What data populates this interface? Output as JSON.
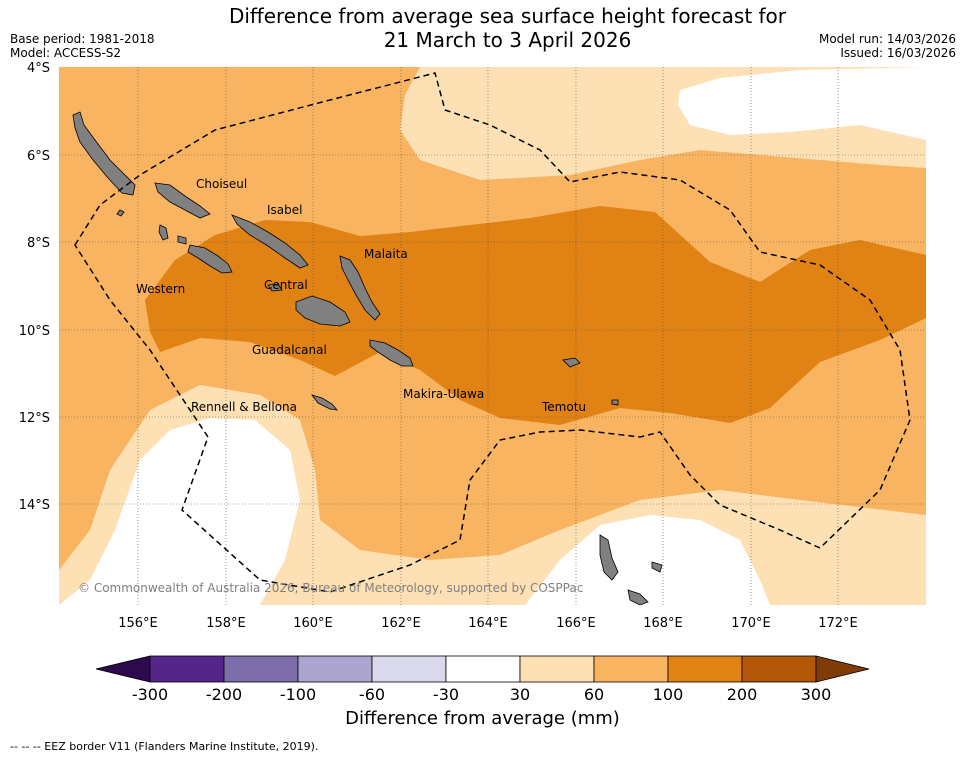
{
  "header": {
    "title_line1": "Difference from average sea surface height forecast for",
    "title_line2": "21 March to 3 April 2026",
    "base_period": "Base period: 1981-2018",
    "model": "Model: ACCESS-S2",
    "model_run": "Model run: 14/03/2026",
    "issued": "Issued: 16/03/2026"
  },
  "map": {
    "lat_labels": [
      "4°S",
      "6°S",
      "8°S",
      "10°S",
      "12°S",
      "14°S"
    ],
    "lon_labels": [
      "156°E",
      "158°E",
      "160°E",
      "162°E",
      "164°E",
      "166°E",
      "168°E",
      "170°E",
      "172°E"
    ],
    "places": [
      "Choiseul",
      "Isabel",
      "Malaita",
      "Western",
      "Central",
      "Guadalcanal",
      "Makira-Ulawa",
      "Rennell & Bellona",
      "Temotu"
    ],
    "copyright": "© Commonwealth of Australia 2026, Bureau of Meteorology, supported by COSPPac"
  },
  "colorbar": {
    "ticks": [
      "-300",
      "-200",
      "-100",
      "-60",
      "-30",
      "30",
      "60",
      "100",
      "200",
      "300"
    ],
    "colors": [
      "#2d0a4e",
      "#54268a",
      "#7d6eab",
      "#aca5cf",
      "#d9d9eb",
      "#ffffff",
      "#fde0b4",
      "#f9b461",
      "#e08214",
      "#b35806",
      "#7f3b08"
    ],
    "label": "Difference from average (mm)"
  },
  "footer": {
    "legend": "--  --  -- EEZ border V11 (Flanders Marine Institute, 2019)."
  }
}
